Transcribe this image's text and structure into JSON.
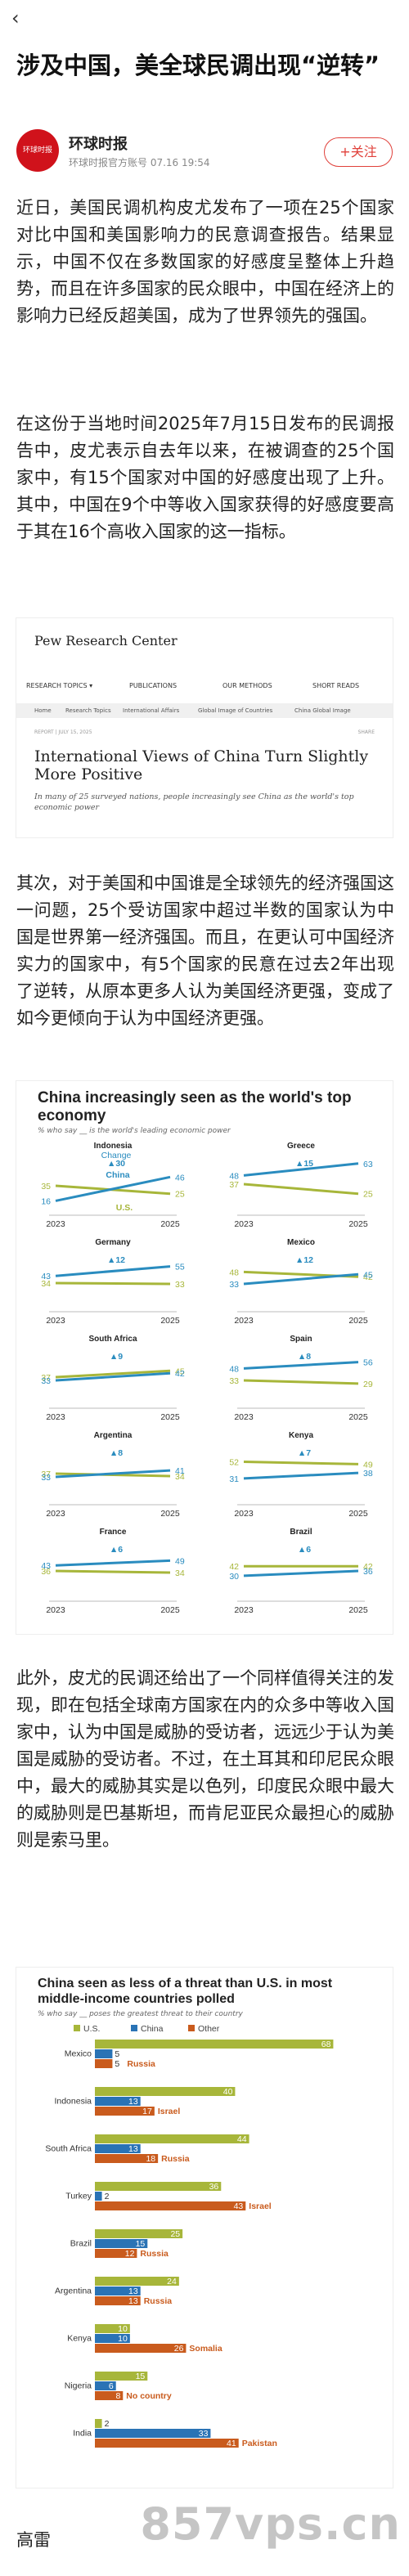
{
  "header": {
    "back_icon": "chevron-left-icon"
  },
  "article": {
    "title": "涉及中国，美全球民调出现“逆转”",
    "source_name": "环球时报",
    "source_meta": "环球时报官方账号  07.16 19:54",
    "source_logo_text": "环球时报",
    "follow_label": "+关注",
    "paragraphs": [
      "近日，美国民调机构皮尤发布了一项在25个国家对比中国和美国影响力的民意调查报告。结果显示，中国不仅在多数国家的好感度呈整体上升趋势，而且在许多国家的民众眼中，中国在经济上的影响力已经反超美国，成为了世界领先的强国。",
      "在这份于当地时间2025年7月15日发布的民调报告中，皮尤表示自去年以来，在被调查的25个国家中，有15个国家对中国的好感度出现了上升。其中，中国在9个中等收入国家获得的好感度要高于其在16个高收入国家的这一指标。",
      "其次，对于美国和中国谁是全球领先的经济强国这一问题，25个受访国家中超过半数的国家认为中国是世界第一经济强国。而且，在更认可中国经济实力的国家中，有5个国家的民意在过去2年出现了逆转，从原本更多人认为美国经济更强，变成了如今更倾向于认为中国经济更强。",
      "此外，皮尤的民调还给出了一个同样值得关注的发现，即在包括全球南方国家在内的众多中等收入国家中，认为中国是威胁的受访者，远远少于认为美国是威胁的受访者。不过，在土耳其和印尼民众眼中，最大的威胁其实是以色列，印度民众眼中最大的威胁则是巴基斯坦，而肯尼亚民众最担心的威胁则是索马里。"
    ],
    "bottom_text": "高雷",
    "watermark": "857vps.cn"
  },
  "pew_card": {
    "logo": "Pew Research Center",
    "nav": [
      "RESEARCH TOPICS ▾",
      "PUBLICATIONS",
      "OUR METHODS",
      "SHORT READS"
    ],
    "crumbs": [
      "Home",
      "Research Topics",
      "International Affairs",
      "Global Image of Countries",
      "China Global Image"
    ],
    "date": "REPORT | JULY 15, 2025",
    "share": "SHARE",
    "title": "International Views of China Turn Slightly More Positive",
    "subtitle": "In many of 25 surveyed nations, people increasingly see China as the world's top economic power"
  },
  "chart_data": [
    {
      "type": "line",
      "title": "China increasingly seen as the world's top economy",
      "subtitle": "% who say __ is the world's leading economic power",
      "x": [
        "2023",
        "2025"
      ],
      "legend_labels": {
        "change": "Change",
        "china": "China",
        "us": "U.S."
      },
      "colors": {
        "china": "#2a8cbf",
        "us": "#a7b63a"
      },
      "panels": [
        {
          "country": "Indonesia",
          "china": [
            16,
            46
          ],
          "us": [
            35,
            25
          ],
          "change": "▲30"
        },
        {
          "country": "Greece",
          "china": [
            48,
            63
          ],
          "us": [
            37,
            25
          ],
          "change": "▲15"
        },
        {
          "country": "Germany",
          "china": [
            43,
            55
          ],
          "us": [
            34,
            33
          ],
          "change": "▲12"
        },
        {
          "country": "Mexico",
          "china": [
            33,
            45
          ],
          "us": [
            48,
            42
          ],
          "change": "▲12"
        },
        {
          "country": "South Africa",
          "china": [
            33,
            42
          ],
          "us": [
            37,
            45
          ],
          "change": "▲9"
        },
        {
          "country": "Spain",
          "china": [
            48,
            56
          ],
          "us": [
            33,
            29
          ],
          "change": "▲8"
        },
        {
          "country": "Argentina",
          "china": [
            33,
            41
          ],
          "us": [
            37,
            34
          ],
          "change": "▲8"
        },
        {
          "country": "Kenya",
          "china": [
            31,
            38
          ],
          "us": [
            52,
            49
          ],
          "change": "▲7"
        },
        {
          "country": "France",
          "china": [
            43,
            49
          ],
          "us": [
            36,
            34
          ],
          "change": "▲6"
        },
        {
          "country": "Brazil",
          "china": [
            30,
            36
          ],
          "us": [
            42,
            42
          ],
          "change": "▲6"
        }
      ]
    },
    {
      "type": "bar",
      "title": "China seen as less of a threat than U.S. in most middle-income countries polled",
      "subtitle": "% who say __ poses the greatest threat to their country",
      "legend": [
        "U.S.",
        "China",
        "Other"
      ],
      "colors": {
        "us": "#a7b63a",
        "china": "#2a73b5",
        "other": "#c95b1d"
      },
      "countries": [
        {
          "name": "Mexico",
          "us": 68,
          "china": 5,
          "other": 5,
          "other_label": "Russia"
        },
        {
          "name": "Indonesia",
          "us": 40,
          "china": 13,
          "other": 17,
          "other_label": "Israel"
        },
        {
          "name": "South Africa",
          "us": 44,
          "china": 13,
          "other": 18,
          "other_label": "Russia"
        },
        {
          "name": "Turkey",
          "us": 36,
          "china": 2,
          "other": 43,
          "other_label": "Israel"
        },
        {
          "name": "Brazil",
          "us": 25,
          "china": 15,
          "other": 12,
          "other_label": "Russia"
        },
        {
          "name": "Argentina",
          "us": 24,
          "china": 13,
          "other": 13,
          "other_label": "Russia"
        },
        {
          "name": "Kenya",
          "us": 10,
          "china": 10,
          "other": 26,
          "other_label": "Somalia"
        },
        {
          "name": "Nigeria",
          "us": 15,
          "china": 6,
          "other": 8,
          "other_label": "No country"
        },
        {
          "name": "India",
          "us": 2,
          "china": 33,
          "other": 41,
          "other_label": "Pakistan"
        }
      ]
    }
  ]
}
